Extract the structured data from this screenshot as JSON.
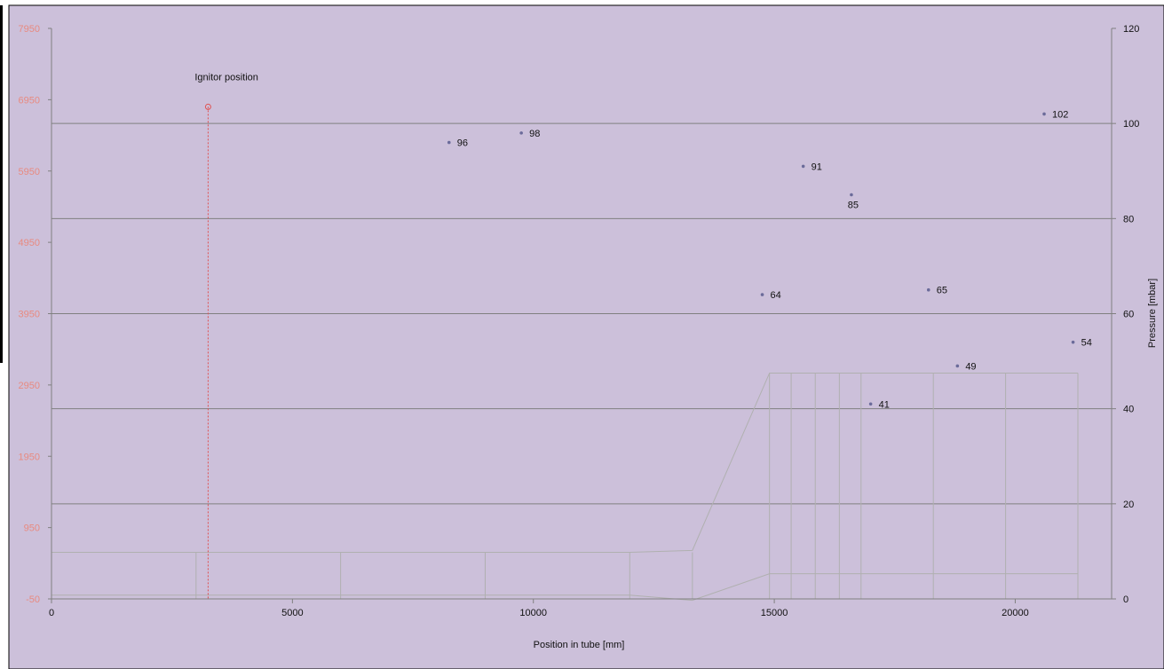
{
  "chart_data": {
    "type": "scatter",
    "title": "",
    "xlabel": "Position in tube [mm]",
    "ylabel_right": "Pressure [mbar]",
    "xlim": [
      0,
      22000
    ],
    "ylim_right": [
      0,
      120
    ],
    "ylim_left": [
      -50,
      7950
    ],
    "x_ticks": [
      "0",
      "5000",
      "10000",
      "15000",
      "20000"
    ],
    "y_ticks_right": [
      "0",
      "20",
      "40",
      "60",
      "80",
      "100",
      "120"
    ],
    "y_ticks_left": [
      "-50",
      "950",
      "1950",
      "2950",
      "3950",
      "4950",
      "5950",
      "6950",
      "7950"
    ],
    "grid": "horizontal",
    "colors": {
      "background": "#ccc0da",
      "plot_area": "#ccc0da",
      "grid": "#808080",
      "left_axis_text": "#e88a80",
      "ignitor": "#e05050",
      "points": "#6b6b9a",
      "tube_outline": "#b0b0b0"
    },
    "series": [
      {
        "points": [
          {
            "x": 8250,
            "y": 96,
            "label": "96"
          },
          {
            "x": 9750,
            "y": 98,
            "label": "98"
          },
          {
            "x": 14750,
            "y": 64,
            "label": "64"
          },
          {
            "x": 15600,
            "y": 91,
            "label": "91"
          },
          {
            "x": 16600,
            "y": 85,
            "label": "85"
          },
          {
            "x": 17000,
            "y": 41,
            "label": "41"
          },
          {
            "x": 18200,
            "y": 65,
            "label": "65"
          },
          {
            "x": 18800,
            "y": 49,
            "label": "49"
          },
          {
            "x": 20600,
            "y": 102,
            "label": "102"
          },
          {
            "x": 21200,
            "y": 54,
            "label": "54"
          }
        ]
      }
    ],
    "annotations": [
      {
        "text": "Ignitor position",
        "x": 3250,
        "y_left": 6850
      }
    ]
  }
}
